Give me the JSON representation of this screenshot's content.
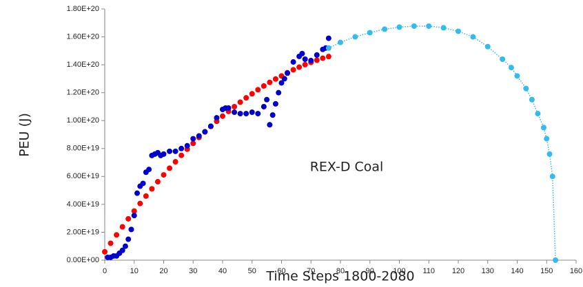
{
  "chart_data": {
    "type": "scatter",
    "xlabel": "Time Steps 1800-2080",
    "ylabel": "PEU (J)",
    "annotation": "REX-D Coal",
    "xlim": [
      0,
      160
    ],
    "xticks": [
      0,
      10,
      20,
      30,
      40,
      50,
      60,
      70,
      80,
      90,
      100,
      110,
      120,
      130,
      140,
      150,
      160
    ],
    "ylim": [
      0,
      1.8e+20
    ],
    "yticks": [
      {
        "value": 0,
        "label": "0.00E+00"
      },
      {
        "value": 2e+19,
        "label": "2.00E+19"
      },
      {
        "value": 4e+19,
        "label": "4.00E+19"
      },
      {
        "value": 6e+19,
        "label": "6.00E+19"
      },
      {
        "value": 8e+19,
        "label": "8.00E+19"
      },
      {
        "value": 1e+20,
        "label": "1.00E+20"
      },
      {
        "value": 1.2e+20,
        "label": "1.20E+20"
      },
      {
        "value": 1.4e+20,
        "label": "1.40E+20"
      },
      {
        "value": 1.6e+20,
        "label": "1.60E+20"
      },
      {
        "value": 1.8e+20,
        "label": "1.80E+20"
      }
    ],
    "series": [
      {
        "color": "#ff0000",
        "x": [
          0,
          2,
          4,
          6,
          8,
          10,
          12,
          14,
          16,
          18,
          20,
          22,
          24,
          26,
          28,
          30,
          32,
          34,
          36,
          38,
          40,
          42,
          44,
          46,
          48,
          50,
          52,
          54,
          56,
          58,
          60,
          62,
          64,
          66,
          68,
          70,
          72,
          74,
          76
        ],
        "values": [
          6e+18,
          1.21e+19,
          1.81e+19,
          2.39e+19,
          2.96e+19,
          3.52e+19,
          4.06e+19,
          4.59e+19,
          5.11e+19,
          5.62e+19,
          6.11e+19,
          6.59e+19,
          7.05e+19,
          7.51e+19,
          7.95e+19,
          8.37e+19,
          8.79e+19,
          9.19e+19,
          9.58e+19,
          9.95e+19,
          1.032e+20,
          1.066e+20,
          1.1e+20,
          1.132e+20,
          1.163e+20,
          1.192e+20,
          1.221e+20,
          1.248e+20,
          1.274e+20,
          1.298e+20,
          1.32e+20,
          1.343e+20,
          1.364e+20,
          1.383e+20,
          1.401e+20,
          1.417e+20,
          1.433e+20,
          1.447e+20,
          1.459e+20
        ]
      },
      {
        "color": "#0000cc",
        "x": [
          1,
          2,
          3,
          4,
          5,
          6,
          7,
          8,
          9,
          10,
          11,
          12,
          13,
          14,
          15,
          16,
          17,
          18,
          19,
          20,
          22,
          24,
          26,
          28,
          30,
          32,
          34,
          36,
          38,
          40,
          41,
          42,
          44,
          46,
          48,
          50,
          52,
          54,
          55,
          56,
          57,
          58,
          59,
          60,
          61,
          62,
          64,
          66,
          67,
          68,
          70,
          72,
          74,
          75,
          76
        ],
        "values": [
          2e+18,
          2e+18,
          3e+18,
          3e+18,
          5e+18,
          7e+18,
          1e+19,
          1.5e+19,
          2.2e+19,
          3.2e+19,
          4.8e+19,
          5.3e+19,
          5.5e+19,
          6.3e+19,
          6.5e+19,
          7.5e+19,
          7.6e+19,
          7.7e+19,
          7.5e+19,
          7.6e+19,
          7.8e+19,
          7.8e+19,
          8e+19,
          8.2e+19,
          8.7e+19,
          8.9e+19,
          9.2e+19,
          9.6e+19,
          1.02e+20,
          1.08e+20,
          1.09e+20,
          1.09e+20,
          1.06e+20,
          1.05e+20,
          1.05e+20,
          1.06e+20,
          1.05e+20,
          1.1e+20,
          1.15e+20,
          9.7e+19,
          1.04e+20,
          1.12e+20,
          1.2e+20,
          1.27e+20,
          1.3e+20,
          1.34e+20,
          1.42e+20,
          1.46e+20,
          1.48e+20,
          1.44e+20,
          1.43e+20,
          1.47e+20,
          1.51e+20,
          1.52e+20,
          1.59e+20
        ]
      },
      {
        "color": "#33bbee",
        "line_style": "dotted",
        "x": [
          76,
          80,
          85,
          90,
          95,
          100,
          105,
          110,
          115,
          120,
          125,
          130,
          135,
          138,
          140,
          143,
          145,
          147,
          149,
          150,
          151,
          152,
          153
        ],
        "values": [
          1.52e+20,
          1.56e+20,
          1.6e+20,
          1.63e+20,
          1.655e+20,
          1.67e+20,
          1.677e+20,
          1.677e+20,
          1.665e+20,
          1.64e+20,
          1.6e+20,
          1.53e+20,
          1.44e+20,
          1.38e+20,
          1.32e+20,
          1.23e+20,
          1.15e+20,
          1.05e+20,
          9.5e+19,
          8.7e+19,
          7.6e+19,
          6e+19,
          0
        ]
      }
    ]
  }
}
